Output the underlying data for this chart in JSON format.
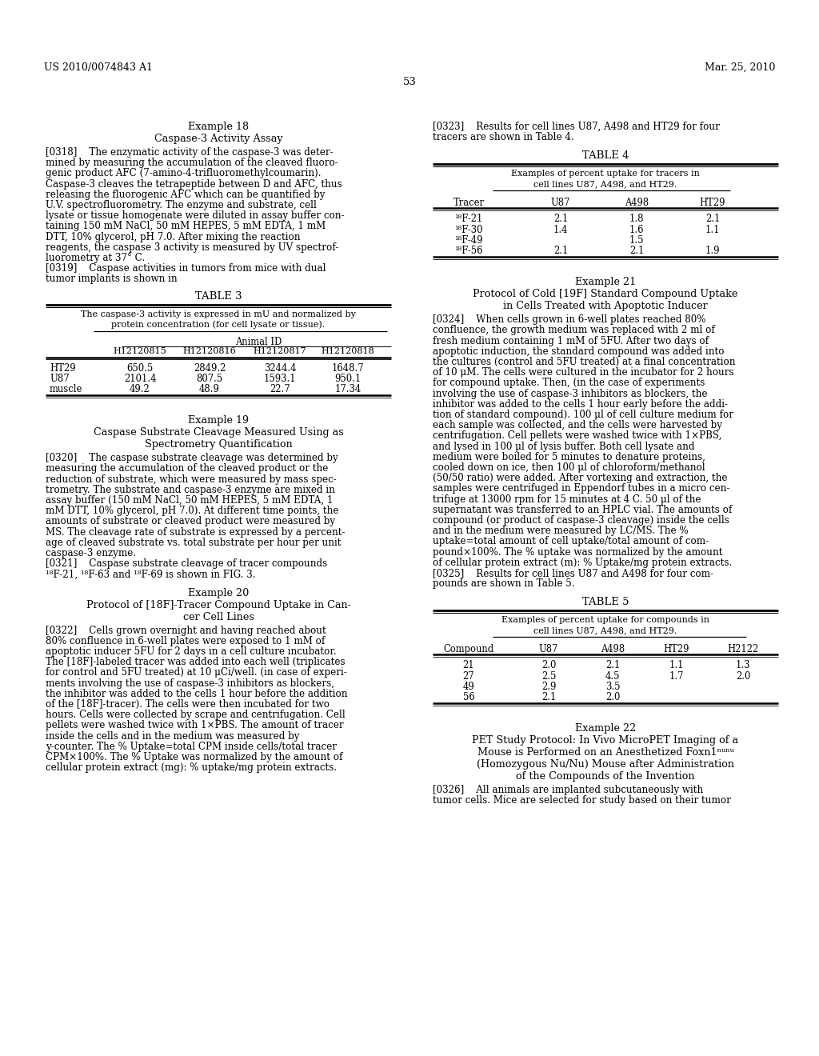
{
  "page_number": "53",
  "patent_number": "US 2010/0074843 A1",
  "patent_date": "Mar. 25, 2010",
  "bg_color": "#ffffff",
  "left_column": {
    "example18_title": "Example 18",
    "example18_subtitle": "Caspase-3 Activity Assay",
    "para318_lines": [
      "[0318]    The enzymatic activity of the caspase-3 was deter-",
      "mined by measuring the accumulation of the cleaved fluoro-",
      "genic product AFC (7-amino-4-trifluoromethylcoumarin).",
      "Caspase-3 cleaves the tetrapeptide between D and AFC, thus",
      "releasing the fluorogenic AFC which can be quantified by",
      "U.V. spectrofluorometry. The enzyme and substrate, cell",
      "lysate or tissue homogenate were diluted in assay buffer con-",
      "taining 150 mM NaCl, 50 mM HEPES, 5 mM EDTA, 1 mM",
      "DTT, 10% glycerol, pH 7.0. After mixing the reaction",
      "reagents, the caspase 3 activity is measured by UV spectrof-",
      "luorometry at 37° C."
    ],
    "para319_lines": [
      "[0319]    Caspase activities in tumors from mice with dual",
      "tumor implants is shown in"
    ],
    "table3_title": "TABLE 3",
    "table3_caption_lines": [
      "The caspase-3 activity is expressed in mU and normalized by",
      "protein concentration (for cell lysate or tissue)."
    ],
    "table3_animal_id": "Animal ID",
    "table3_col_headers": [
      "H12120815",
      "H12120816",
      "H12120817",
      "H12120818"
    ],
    "table3_row_labels": [
      "HT29",
      "U87",
      "muscle"
    ],
    "table3_data": [
      [
        "650.5",
        "2849.2",
        "3244.4",
        "1648.7"
      ],
      [
        "2101.4",
        "807.5",
        "1593.1",
        "950.1"
      ],
      [
        "49.2",
        "48.9",
        "22.7",
        "17.34"
      ]
    ],
    "example19_title": "Example 19",
    "example19_subtitle_lines": [
      "Caspase Substrate Cleavage Measured Using as",
      "Spectrometry Quantification"
    ],
    "para320_lines": [
      "[0320]    The caspase substrate cleavage was determined by",
      "measuring the accumulation of the cleaved product or the",
      "reduction of substrate, which were measured by mass spec-",
      "trometry. The substrate and caspase-3 enzyme are mixed in",
      "assay buffer (150 mM NaCl, 50 mM HEPES, 5 mM EDTA, 1",
      "mM DTT, 10% glycerol, pH 7.0). At different time points, the",
      "amounts of substrate or cleaved product were measured by",
      "MS. The cleavage rate of substrate is expressed by a percent-",
      "age of cleaved substrate vs. total substrate per hour per unit",
      "caspase-3 enzyme."
    ],
    "para321_lines": [
      "[0321]    Caspase substrate cleavage of tracer compounds",
      "¹⁸F-21, ¹⁸F-63 and ¹⁸F-69 is shown in FIG. 3."
    ],
    "example20_title": "Example 20",
    "example20_subtitle_lines": [
      "Protocol of [18F]-Tracer Compound Uptake in Can-",
      "cer Cell Lines"
    ],
    "para322_lines": [
      "[0322]    Cells grown overnight and having reached about",
      "80% confluence in 6-well plates were exposed to 1 mM of",
      "apoptotic inducer 5FU for 2 days in a cell culture incubator.",
      "The [18F]-labeled tracer was added into each well (triplicates",
      "for control and 5FU treated) at 10 μCi/well. (in case of experi-",
      "ments involving the use of caspase-3 inhibitors as blockers,",
      "the inhibitor was added to the cells 1 hour before the addition",
      "of the [18F]-tracer). The cells were then incubated for two",
      "hours. Cells were collected by scrape and centrifugation. Cell",
      "pellets were washed twice with 1×PBS. The amount of tracer",
      "inside the cells and in the medium was measured by",
      "y-counter. The % Uptake=total CPM inside cells/total tracer",
      "CPM×100%. The % Uptake was normalized by the amount of",
      "cellular protein extract (mg): % uptake/mg protein extracts."
    ]
  },
  "right_column": {
    "para323_lines": [
      "[0323]    Results for cell lines U87, A498 and HT29 for four",
      "tracers are shown in Table 4."
    ],
    "table4_title": "TABLE 4",
    "table4_caption_lines": [
      "Examples of percent uptake for tracers in",
      "cell lines U87, A498, and HT29."
    ],
    "table4_col_headers": [
      "Tracer",
      "U87",
      "A498",
      "HT29"
    ],
    "table4_row_labels": [
      "¹⁸F-21",
      "¹⁸F-30",
      "¹⁸F-49",
      "¹⁸F-56"
    ],
    "table4_data": [
      [
        "2.1",
        "1.8",
        "2.1"
      ],
      [
        "1.4",
        "1.6",
        "1.1"
      ],
      [
        "",
        "1.5",
        ""
      ],
      [
        "2.1",
        "2.1",
        "1.9"
      ]
    ],
    "example21_title": "Example 21",
    "example21_subtitle_lines": [
      "Protocol of Cold [19F] Standard Compound Uptake",
      "in Cells Treated with Apoptotic Inducer"
    ],
    "para324_lines": [
      "[0324]    When cells grown in 6-well plates reached 80%",
      "confluence, the growth medium was replaced with 2 ml of",
      "fresh medium containing 1 mM of 5FU. After two days of",
      "apoptotic induction, the standard compound was added into",
      "the cultures (control and 5FU treated) at a final concentration",
      "of 10 μM. The cells were cultured in the incubator for 2 hours",
      "for compound uptake. Then, (in the case of experiments",
      "involving the use of caspase-3 inhibitors as blockers, the",
      "inhibitor was added to the cells 1 hour early before the addi-",
      "tion of standard compound). 100 μl of cell culture medium for",
      "each sample was collected, and the cells were harvested by",
      "centrifugation. Cell pellets were washed twice with 1×PBS,",
      "and lysed in 100 μl of lysis buffer. Both cell lysate and",
      "medium were boiled for 5 minutes to denature proteins,",
      "cooled down on ice, then 100 μl of chloroform/methanol",
      "(50/50 ratio) were added. After vortexing and extraction, the",
      "samples were centrifuged in Eppendorf tubes in a micro cen-",
      "trifuge at 13000 rpm for 15 minutes at 4 C. 50 μl of the",
      "supernatant was transferred to an HPLC vial. The amounts of",
      "compound (or product of caspase-3 cleavage) inside the cells",
      "and in the medium were measured by LC/MS. The %",
      "uptake=total amount of cell uptake/total amount of com-",
      "pound×100%. The % uptake was normalized by the amount",
      "of cellular protein extract (m): % Uptake/mg protein extracts."
    ],
    "para325_lines": [
      "[0325]    Results for cell lines U87 and A498 for four com-",
      "pounds are shown in Table 5."
    ],
    "table5_title": "TABLE 5",
    "table5_caption_lines": [
      "Examples of percent uptake for compounds in",
      "cell lines U87, A498, and HT29."
    ],
    "table5_col_headers": [
      "Compound",
      "U87",
      "A498",
      "HT29",
      "H2122"
    ],
    "table5_row_labels": [
      "21",
      "27",
      "49",
      "56"
    ],
    "table5_data": [
      [
        "2.0",
        "2.1",
        "1.1",
        "1.3"
      ],
      [
        "2.5",
        "4.5",
        "1.7",
        "2.0"
      ],
      [
        "2.9",
        "3.5",
        "",
        ""
      ],
      [
        "2.1",
        "2.0",
        "",
        ""
      ]
    ],
    "example22_title": "Example 22",
    "example22_subtitle_lines": [
      "PET Study Protocol: In Vivo MicroPET Imaging of a",
      "Mouse is Performed on an Anesthetized Foxn1ⁿᵘⁿᵘ",
      "(Homozygous Nu/Nu) Mouse after Administration",
      "of the Compounds of the Invention"
    ],
    "para326_lines": [
      "[0326]    All animals are implanted subcutaneously with",
      "tumor cells. Mice are selected for study based on their tumor"
    ]
  }
}
